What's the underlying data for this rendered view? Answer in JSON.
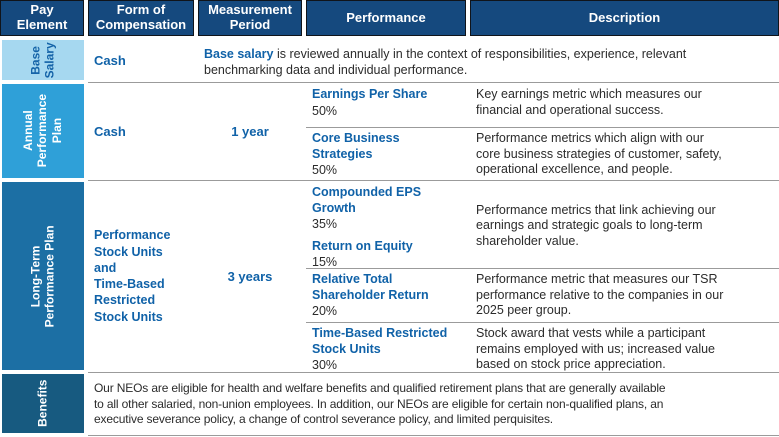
{
  "colors": {
    "header_bg": "#15497E",
    "base_salary_bg": "#A6D8F0",
    "annual_plan_bg": "#2FA0D8",
    "long_term_plan_bg": "#1C6FA4",
    "benefits_bg": "#175A80",
    "accent_blue_text": "#1062A8",
    "body_text": "#2B2B2B",
    "rule_gray": "#9B9B9B"
  },
  "header": {
    "pay_element": "Pay\nElement",
    "form_of_compensation": "Form of\nCompensation",
    "measurement_period": "Measurement\nPeriod",
    "performance": "Performance",
    "description": "Description"
  },
  "base_salary": {
    "label": "Base\nSalary",
    "form": "Cash",
    "description_bold": "Base salary",
    "description_rest": " is reviewed annually in the context of responsibilities, experience, relevant\nbenchmarking data and individual performance."
  },
  "annual": {
    "label": "Annual\nPerformance\nPlan",
    "form": "Cash",
    "period": "1 year",
    "items": [
      {
        "metric": "Earnings Per Share",
        "weight": "50%",
        "description": "Key earnings metric which measures our\nfinancial and operational success."
      },
      {
        "metric": "Core Business\nStrategies",
        "weight": "50%",
        "description": "Performance metrics which align with our\ncore business strategies of customer, safety,\noperational excellence, and people."
      }
    ]
  },
  "long_term": {
    "label": "Long-Term\nPerformance Plan",
    "form": "Performance\nStock Units\nand\nTime-Based\nRestricted\nStock Units",
    "period": "3 years",
    "items": [
      {
        "metrics": [
          {
            "name": "Compounded EPS\nGrowth",
            "weight": "35%"
          },
          {
            "name": "Return on Equity",
            "weight": "15%"
          }
        ],
        "description": "Performance metrics that link achieving our\nearnings and strategic goals to long-term\nshareholder value."
      },
      {
        "metrics": [
          {
            "name": "Relative Total\nShareholder Return",
            "weight": "20%"
          }
        ],
        "description": "Performance metric that measures our TSR\nperformance relative to the companies in our\n2025 peer group."
      },
      {
        "metrics": [
          {
            "name": "Time-Based Restricted\nStock Units",
            "weight": "30%"
          }
        ],
        "description": "Stock award that vests while a participant\nremains employed with us; increased value\nbased on stock price appreciation."
      }
    ]
  },
  "benefits": {
    "label": "Benefits",
    "description": "Our NEOs are eligible for health and welfare benefits and qualified retirement plans that are generally available\nto all other salaried, non-union employees. In addition, our NEOs are eligible for certain non-qualified plans, an\nexecutive severance policy, a change of control severance policy, and limited perquisites."
  }
}
